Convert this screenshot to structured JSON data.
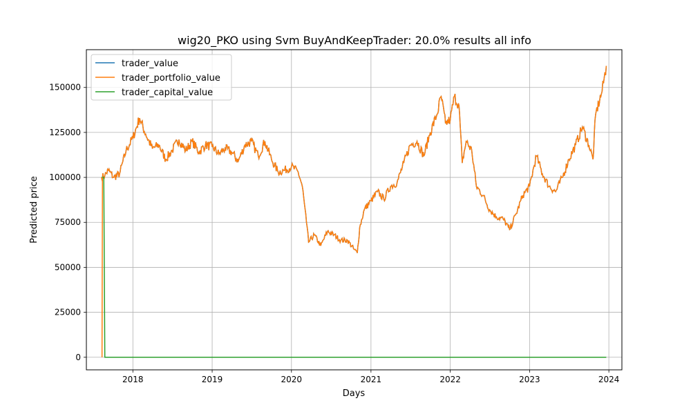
{
  "chart_data": {
    "type": "line",
    "title": "wig20_PKO using Svm BuyAndKeepTrader: 20.0% results all info",
    "xlabel": "Days",
    "ylabel": "Predicted price",
    "xlim": [
      "2017-06-01",
      "2024-03-01"
    ],
    "ylim": [
      -7000,
      171000
    ],
    "x_ticks": [
      "2018",
      "2019",
      "2020",
      "2021",
      "2022",
      "2023",
      "2024"
    ],
    "y_ticks": [
      0,
      25000,
      50000,
      75000,
      100000,
      125000,
      150000
    ],
    "y_tick_labels": [
      "0",
      "25000",
      "50000",
      "75000",
      "100000",
      "125000",
      "150000"
    ],
    "grid": true,
    "legend_position": "top-left",
    "series": [
      {
        "name": "trader_value",
        "color": "#1f77b4",
        "points": [
          [
            "2017-08-10",
            100000
          ],
          [
            "2017-08-25",
            101000
          ],
          [
            "2017-09-10",
            104000
          ],
          [
            "2017-10-05",
            100000
          ],
          [
            "2017-11-01",
            102000
          ],
          [
            "2017-12-01",
            115000
          ],
          [
            "2018-01-01",
            122000
          ],
          [
            "2018-02-01",
            133000
          ],
          [
            "2018-03-01",
            124000
          ],
          [
            "2018-04-01",
            116000
          ],
          [
            "2018-05-01",
            118000
          ],
          [
            "2018-06-01",
            110000
          ],
          [
            "2018-07-01",
            115000
          ],
          [
            "2018-08-01",
            121000
          ],
          [
            "2018-09-01",
            115000
          ],
          [
            "2018-10-01",
            120000
          ],
          [
            "2018-11-01",
            114000
          ],
          [
            "2018-12-01",
            118000
          ],
          [
            "2019-01-01",
            117000
          ],
          [
            "2019-02-01",
            113000
          ],
          [
            "2019-03-01",
            116000
          ],
          [
            "2019-04-01",
            114000
          ],
          [
            "2019-05-01",
            109000
          ],
          [
            "2019-06-01",
            118000
          ],
          [
            "2019-07-01",
            120000
          ],
          [
            "2019-08-01",
            112000
          ],
          [
            "2019-09-01",
            120000
          ],
          [
            "2019-10-01",
            110000
          ],
          [
            "2019-11-01",
            103000
          ],
          [
            "2019-12-01",
            104000
          ],
          [
            "2020-01-01",
            106000
          ],
          [
            "2020-02-01",
            103000
          ],
          [
            "2020-02-20",
            95000
          ],
          [
            "2020-03-10",
            75000
          ],
          [
            "2020-03-20",
            64000
          ],
          [
            "2020-04-15",
            68000
          ],
          [
            "2020-05-15",
            62000
          ],
          [
            "2020-06-15",
            70000
          ],
          [
            "2020-07-15",
            68000
          ],
          [
            "2020-08-15",
            65000
          ],
          [
            "2020-09-15",
            65000
          ],
          [
            "2020-10-15",
            60000
          ],
          [
            "2020-10-30",
            58000
          ],
          [
            "2020-11-10",
            72000
          ],
          [
            "2020-12-01",
            82000
          ],
          [
            "2021-01-01",
            87000
          ],
          [
            "2021-02-01",
            92000
          ],
          [
            "2021-03-01",
            88000
          ],
          [
            "2021-04-01",
            95000
          ],
          [
            "2021-05-01",
            97000
          ],
          [
            "2021-06-01",
            108000
          ],
          [
            "2021-07-01",
            118000
          ],
          [
            "2021-08-01",
            120000
          ],
          [
            "2021-09-01",
            112000
          ],
          [
            "2021-10-01",
            125000
          ],
          [
            "2021-11-01",
            135000
          ],
          [
            "2021-11-20",
            145000
          ],
          [
            "2021-12-10",
            130000
          ],
          [
            "2022-01-01",
            132000
          ],
          [
            "2022-01-20",
            145000
          ],
          [
            "2022-02-10",
            140000
          ],
          [
            "2022-02-25",
            108000
          ],
          [
            "2022-03-15",
            120000
          ],
          [
            "2022-04-10",
            115000
          ],
          [
            "2022-05-01",
            95000
          ],
          [
            "2022-06-01",
            90000
          ],
          [
            "2022-07-01",
            82000
          ],
          [
            "2022-08-01",
            78000
          ],
          [
            "2022-09-01",
            77000
          ],
          [
            "2022-10-01",
            71000
          ],
          [
            "2022-11-01",
            80000
          ],
          [
            "2022-12-01",
            90000
          ],
          [
            "2023-01-01",
            95000
          ],
          [
            "2023-02-01",
            112000
          ],
          [
            "2023-03-01",
            102000
          ],
          [
            "2023-04-01",
            95000
          ],
          [
            "2023-05-01",
            92000
          ],
          [
            "2023-06-01",
            100000
          ],
          [
            "2023-07-01",
            110000
          ],
          [
            "2023-08-01",
            118000
          ],
          [
            "2023-09-01",
            128000
          ],
          [
            "2023-10-01",
            118000
          ],
          [
            "2023-10-20",
            110000
          ],
          [
            "2023-11-01",
            135000
          ],
          [
            "2023-12-01",
            148000
          ],
          [
            "2023-12-20",
            162000
          ]
        ]
      },
      {
        "name": "trader_portfolio_value",
        "color": "#ff7f0e",
        "note_same_as": "trader_value"
      },
      {
        "name": "trader_capital_value",
        "color": "#2ca02c",
        "points": [
          [
            "2017-08-10",
            100000
          ],
          [
            "2017-08-20",
            100000
          ],
          [
            "2017-08-25",
            0
          ],
          [
            "2023-12-20",
            0
          ]
        ]
      }
    ]
  }
}
